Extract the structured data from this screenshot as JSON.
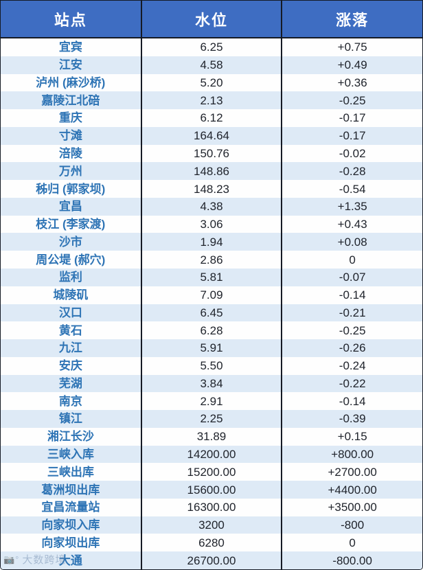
{
  "chart_data": {
    "type": "table",
    "columns": [
      "站点",
      "水位",
      "涨落"
    ],
    "rows": [
      [
        "宜宾",
        "6.25",
        "+0.75"
      ],
      [
        "江安",
        "4.58",
        "+0.49"
      ],
      [
        "泸州 (麻沙桥)",
        "5.20",
        "+0.36"
      ],
      [
        "嘉陵江北碚",
        "2.13",
        "-0.25"
      ],
      [
        "重庆",
        "6.12",
        "-0.17"
      ],
      [
        "寸滩",
        "164.64",
        "-0.17"
      ],
      [
        "涪陵",
        "150.76",
        "-0.02"
      ],
      [
        "万州",
        "148.86",
        "-0.28"
      ],
      [
        "秭归 (郭家坝)",
        "148.23",
        "-0.54"
      ],
      [
        "宜昌",
        "4.38",
        "+1.35"
      ],
      [
        "枝江 (李家渡)",
        "3.06",
        "+0.43"
      ],
      [
        "沙市",
        "1.94",
        "+0.08"
      ],
      [
        "周公堤 (郝穴)",
        "2.86",
        "0"
      ],
      [
        "监利",
        "5.81",
        "-0.07"
      ],
      [
        "城陵矶",
        "7.09",
        "-0.14"
      ],
      [
        "汉口",
        "6.45",
        "-0.21"
      ],
      [
        "黄石",
        "6.28",
        "-0.25"
      ],
      [
        "九江",
        "5.91",
        "-0.26"
      ],
      [
        "安庆",
        "5.50",
        "-0.24"
      ],
      [
        "芜湖",
        "3.84",
        "-0.22"
      ],
      [
        "南京",
        "2.91",
        "-0.14"
      ],
      [
        "镇江",
        "2.25",
        "-0.39"
      ],
      [
        "湘江长沙",
        "31.89",
        "+0.15"
      ],
      [
        "三峡入库",
        "14200.00",
        "+800.00"
      ],
      [
        "三峡出库",
        "15200.00",
        "+2700.00"
      ],
      [
        "葛洲坝出库",
        "15600.00",
        "+4400.00"
      ],
      [
        "宜昌流量站",
        "16300.00",
        "+3500.00"
      ],
      [
        "向家坝入库",
        "3200",
        "-800"
      ],
      [
        "向家坝出库",
        "6280",
        "0"
      ],
      [
        "大通",
        "26700.00",
        "-800.00"
      ]
    ],
    "layout": {
      "header_position": "top",
      "row_striping": "white-lightblue-alternating",
      "grid": "vertical-lines-only"
    }
  },
  "watermark": {
    "text": "大数跨境",
    "icon": "camera-logo-icon"
  },
  "colors": {
    "header_bg": "#3e6dc2",
    "header_text": "#ffffff",
    "row_alt_bg": "#deeaf6",
    "row_bg": "#fefefe",
    "station_text": "#2e74b5",
    "value_text": "#20242c",
    "grid_border": "#151a24",
    "watermark_text": "#7d96b5"
  }
}
